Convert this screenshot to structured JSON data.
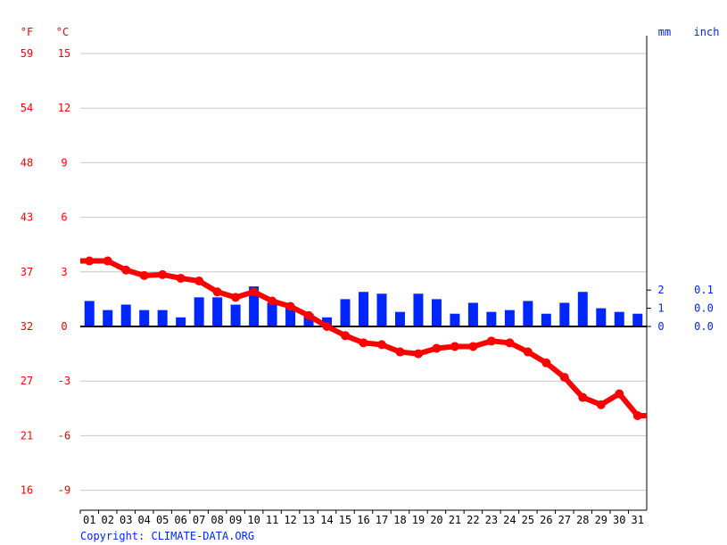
{
  "chart_data": {
    "type": "bar+line",
    "left_units": {
      "fahrenheit": "°F",
      "celsius": "°C"
    },
    "right_units": {
      "mm": "mm",
      "inch": "inch"
    },
    "celsius_ticks": [
      15,
      12,
      9,
      6,
      3,
      0,
      -3,
      -6,
      -9
    ],
    "fahrenheit_ticks": [
      59,
      54,
      48,
      43,
      37,
      32,
      27,
      21,
      16
    ],
    "precip_ticks_mm": [
      2,
      1,
      0
    ],
    "precip_ticks_inch": [
      "0.1",
      "0.0",
      "0.0"
    ],
    "ylim_celsius": [
      -10,
      16
    ],
    "categories": [
      "01",
      "02",
      "03",
      "04",
      "05",
      "06",
      "07",
      "08",
      "09",
      "10",
      "11",
      "12",
      "13",
      "14",
      "15",
      "16",
      "17",
      "18",
      "19",
      "20",
      "21",
      "22",
      "23",
      "24",
      "25",
      "26",
      "27",
      "28",
      "29",
      "30",
      "31"
    ],
    "temperature_c": [
      3.6,
      3.6,
      3.1,
      2.8,
      2.85,
      2.65,
      2.5,
      1.9,
      1.6,
      1.9,
      1.4,
      1.1,
      0.6,
      0.0,
      -0.5,
      -0.9,
      -1.0,
      -1.4,
      -1.5,
      -1.2,
      -1.1,
      -1.1,
      -0.8,
      -0.9,
      -1.4,
      -2.0,
      -2.8,
      -3.9,
      -4.3,
      -3.7,
      -4.9
    ],
    "precipitation_mm": [
      1.4,
      0.9,
      1.2,
      0.9,
      0.9,
      0.5,
      1.6,
      1.6,
      1.2,
      2.2,
      1.3,
      1.05,
      0.7,
      0.5,
      1.5,
      1.9,
      1.8,
      0.8,
      1.8,
      1.5,
      0.7,
      1.3,
      0.8,
      0.9,
      1.4,
      0.7,
      1.3,
      1.9,
      1.0,
      0.8,
      0.7
    ],
    "grid": true,
    "colors": {
      "temperature": "#ff0000",
      "precipitation": "#0026ff",
      "left_axis_text": "#ff0000",
      "right_axis_text": "#0026ff"
    }
  },
  "copyright": "Copyright: CLIMATE-DATA.ORG"
}
